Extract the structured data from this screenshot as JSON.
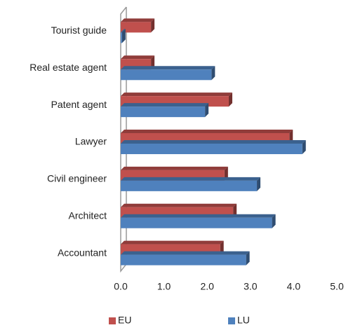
{
  "chart_data": {
    "type": "bar",
    "orientation": "horizontal",
    "categories": [
      "Tourist guide",
      "Real estate agent",
      "Patent agent",
      "Lawyer",
      "Civil engineer",
      "Architect",
      "Accountant"
    ],
    "series": [
      {
        "name": "EU",
        "color": "#c0504d",
        "values": [
          0.7,
          0.7,
          2.5,
          3.9,
          2.4,
          2.6,
          2.3
        ]
      },
      {
        "name": "LU",
        "color": "#4f81bd",
        "values": [
          0.03,
          2.1,
          1.95,
          4.2,
          3.15,
          3.5,
          2.9
        ]
      }
    ],
    "xlim": [
      0,
      5
    ],
    "xticks": [
      {
        "value": 0,
        "label": "0.0"
      },
      {
        "value": 1,
        "label": "1.0"
      },
      {
        "value": 2,
        "label": "2.0"
      },
      {
        "value": 3,
        "label": "3.0"
      },
      {
        "value": 4,
        "label": "4.0"
      },
      {
        "value": 5,
        "label": "5.0"
      }
    ],
    "legend": "bottom"
  }
}
